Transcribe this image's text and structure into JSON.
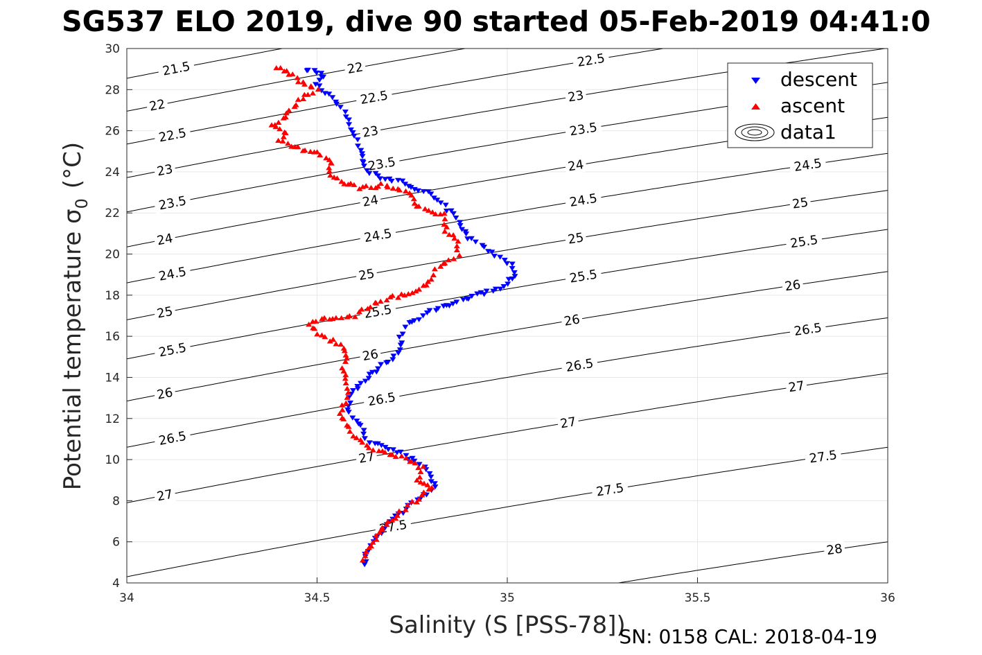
{
  "chart_data": {
    "type": "scatter",
    "title": "SG537 ELO 2019, dive 90 started 05-Feb-2019 04:41:0",
    "xlabel": "Salinity (S [PSS-78])",
    "ylabel_main": "Potential temperature σ",
    "ylabel_sub": "0",
    "ylabel_unit": "(°C)",
    "footer": "SN: 0158  CAL: 2018-04-19",
    "xlim": [
      34,
      36
    ],
    "ylim": [
      4,
      30
    ],
    "x_ticks": [
      {
        "v": 34,
        "label": "34"
      },
      {
        "v": 34.5,
        "label": "34.5"
      },
      {
        "v": 35,
        "label": "35"
      },
      {
        "v": 35.5,
        "label": "35.5"
      },
      {
        "v": 36,
        "label": "36"
      }
    ],
    "y_ticks": [
      {
        "v": 4,
        "label": "4"
      },
      {
        "v": 6,
        "label": "6"
      },
      {
        "v": 8,
        "label": "8"
      },
      {
        "v": 10,
        "label": "10"
      },
      {
        "v": 12,
        "label": "12"
      },
      {
        "v": 14,
        "label": "14"
      },
      {
        "v": 16,
        "label": "16"
      },
      {
        "v": 18,
        "label": "18"
      },
      {
        "v": 20,
        "label": "20"
      },
      {
        "v": 22,
        "label": "22"
      },
      {
        "v": 24,
        "label": "24"
      },
      {
        "v": 26,
        "label": "26"
      },
      {
        "v": 28,
        "label": "28"
      },
      {
        "v": 30,
        "label": "30"
      }
    ],
    "grid": true,
    "legend": {
      "position": "top-right",
      "entries": [
        {
          "label": "descent",
          "marker": "triangle-down",
          "color": "#0000ff"
        },
        {
          "label": "ascent",
          "marker": "triangle-up",
          "color": "#ff0000"
        },
        {
          "label": "data1",
          "marker": "contour",
          "color": "#000000"
        }
      ]
    },
    "contours": {
      "color": "#000000",
      "slope_degC_per_psu": 3.65,
      "levels": [
        {
          "label": "21.5",
          "y_at_s34": 28.55,
          "label_s": 34.13
        },
        {
          "label": "22",
          "y_at_s34": 26.95,
          "label_s": [
            34.08,
            34.6,
            35.16
          ]
        },
        {
          "label": "22.5",
          "y_at_s34": 25.35,
          "label_s": [
            34.12,
            34.65,
            35.22,
            35.78
          ]
        },
        {
          "label": "23",
          "y_at_s34": 23.72,
          "label_s": [
            34.1,
            34.64,
            35.18
          ]
        },
        {
          "label": "23.5",
          "y_at_s34": 22.05,
          "label_s": [
            34.12,
            34.67,
            35.2
          ]
        },
        {
          "label": "24",
          "y_at_s34": 20.35,
          "label_s": [
            34.1,
            34.64,
            35.18,
            35.77
          ]
        },
        {
          "label": "24.5",
          "y_at_s34": 18.6,
          "label_s": [
            34.12,
            34.66,
            35.2,
            35.79
          ]
        },
        {
          "label": "25",
          "y_at_s34": 16.8,
          "label_s": [
            34.1,
            34.63,
            35.18,
            35.77
          ]
        },
        {
          "label": "25.5",
          "y_at_s34": 14.9,
          "label_s": [
            34.12,
            34.66,
            35.2,
            35.78
          ]
        },
        {
          "label": "26",
          "y_at_s34": 12.85,
          "label_s": [
            34.1,
            34.64,
            35.17,
            35.75
          ]
        },
        {
          "label": "26.5",
          "y_at_s34": 10.6,
          "label_s": [
            34.12,
            34.67,
            35.19,
            35.79
          ]
        },
        {
          "label": "27",
          "y_at_s34": 7.9,
          "label_s": [
            34.1,
            34.63,
            35.16,
            35.76
          ]
        },
        {
          "label": "27.5",
          "y_at_s34": 4.3,
          "label_s": [
            34.7,
            35.27,
            35.83
          ]
        },
        {
          "label": "28",
          "y_at_s34": -0.3,
          "label_s": [
            35.32,
            35.86
          ]
        }
      ]
    },
    "series": [
      {
        "name": "descent",
        "marker": "triangle-down",
        "color": "#0000ff",
        "path": [
          [
            34.47,
            29.0
          ],
          [
            34.52,
            28.7
          ],
          [
            34.5,
            28.3
          ],
          [
            34.54,
            27.6
          ],
          [
            34.57,
            26.9
          ],
          [
            34.59,
            26.1
          ],
          [
            34.61,
            25.3
          ],
          [
            34.62,
            24.6
          ],
          [
            34.63,
            24.1
          ],
          [
            34.66,
            23.8
          ],
          [
            34.72,
            23.5
          ],
          [
            34.78,
            23.1
          ],
          [
            34.82,
            22.6
          ],
          [
            34.86,
            21.9
          ],
          [
            34.9,
            20.8
          ],
          [
            34.95,
            20.2
          ],
          [
            35.01,
            19.5
          ],
          [
            35.02,
            19.0
          ],
          [
            34.99,
            18.4
          ],
          [
            34.9,
            17.9
          ],
          [
            34.8,
            17.2
          ],
          [
            34.74,
            16.6
          ],
          [
            34.72,
            16.0
          ],
          [
            34.72,
            15.3
          ],
          [
            34.68,
            14.7
          ],
          [
            34.64,
            14.1
          ],
          [
            34.61,
            13.6
          ],
          [
            34.59,
            13.2
          ],
          [
            34.58,
            12.4
          ],
          [
            34.61,
            11.8
          ],
          [
            34.63,
            11.0
          ],
          [
            34.66,
            10.7
          ],
          [
            34.72,
            10.3
          ],
          [
            34.79,
            9.6
          ],
          [
            34.8,
            9.0
          ],
          [
            34.81,
            8.6
          ],
          [
            34.76,
            8.0
          ],
          [
            34.71,
            7.2
          ],
          [
            34.68,
            6.7
          ],
          [
            34.66,
            6.3
          ],
          [
            34.64,
            5.8
          ],
          [
            34.63,
            5.4
          ],
          [
            34.625,
            4.9
          ]
        ]
      },
      {
        "name": "ascent",
        "marker": "triangle-up",
        "color": "#ff0000",
        "path": [
          [
            34.39,
            29.1
          ],
          [
            34.43,
            28.8
          ],
          [
            34.46,
            28.3
          ],
          [
            34.5,
            28.0
          ],
          [
            34.46,
            27.6
          ],
          [
            34.43,
            27.0
          ],
          [
            34.41,
            26.6
          ],
          [
            34.38,
            26.2
          ],
          [
            34.42,
            25.9
          ],
          [
            34.4,
            25.6
          ],
          [
            34.44,
            25.2
          ],
          [
            34.5,
            24.9
          ],
          [
            34.54,
            24.5
          ],
          [
            34.53,
            24.0
          ],
          [
            34.56,
            23.5
          ],
          [
            34.62,
            23.2
          ],
          [
            34.68,
            23.4
          ],
          [
            34.7,
            23.2
          ],
          [
            34.75,
            22.9
          ],
          [
            34.76,
            22.3
          ],
          [
            34.83,
            21.9
          ],
          [
            34.84,
            21.1
          ],
          [
            34.87,
            20.6
          ],
          [
            34.87,
            19.9
          ],
          [
            34.82,
            19.4
          ],
          [
            34.8,
            18.8
          ],
          [
            34.76,
            18.2
          ],
          [
            34.7,
            17.9
          ],
          [
            34.65,
            17.6
          ],
          [
            34.6,
            17.0
          ],
          [
            34.53,
            16.9
          ],
          [
            34.48,
            16.6
          ],
          [
            34.51,
            16.0
          ],
          [
            34.56,
            15.6
          ],
          [
            34.58,
            15.1
          ],
          [
            34.57,
            14.5
          ],
          [
            34.58,
            13.7
          ],
          [
            34.58,
            13.0
          ],
          [
            34.56,
            12.3
          ],
          [
            34.58,
            11.7
          ],
          [
            34.6,
            11.0
          ],
          [
            34.65,
            10.5
          ],
          [
            34.72,
            10.1
          ],
          [
            34.78,
            9.6
          ],
          [
            34.76,
            9.0
          ],
          [
            34.8,
            8.7
          ],
          [
            34.76,
            8.0
          ],
          [
            34.72,
            7.5
          ],
          [
            34.69,
            6.9
          ],
          [
            34.66,
            6.4
          ],
          [
            34.65,
            5.9
          ],
          [
            34.63,
            5.5
          ],
          [
            34.62,
            5.1
          ]
        ]
      }
    ]
  }
}
